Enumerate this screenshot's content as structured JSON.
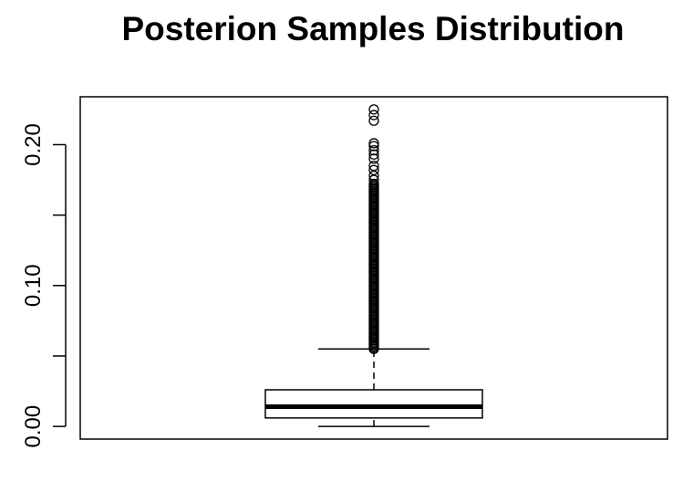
{
  "chart_data": {
    "type": "box",
    "title": "Posterion Samples Distribution",
    "xlabel": "",
    "ylabel": "",
    "ylim": [
      -0.009,
      0.234
    ],
    "yticks": [
      0.0,
      0.05,
      0.1,
      0.15,
      0.2
    ],
    "ytick_labels": [
      "0.00",
      "",
      "0.10",
      "",
      "0.20"
    ],
    "grid": false,
    "legend": "none",
    "box": {
      "lower_whisker": 0.0,
      "q1": 0.006,
      "median": 0.014,
      "q3": 0.026,
      "upper_whisker": 0.055
    },
    "outliers": {
      "continuous_from": 0.055,
      "continuous_to": 0.173,
      "points": [
        0.175,
        0.178,
        0.182,
        0.185,
        0.19,
        0.193,
        0.196,
        0.199,
        0.201,
        0.217,
        0.221,
        0.225
      ]
    },
    "colors": {
      "line": "#000000",
      "background": "#ffffff"
    }
  }
}
